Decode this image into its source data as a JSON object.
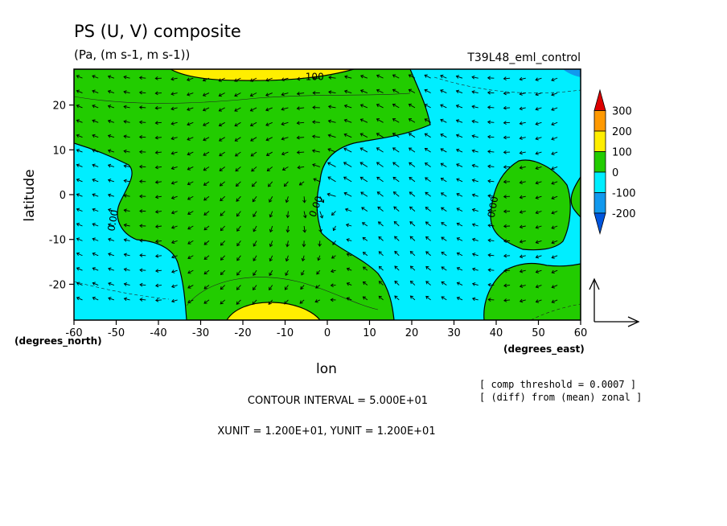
{
  "chart_data": {
    "type": "heatmap",
    "title": "PS (U, V) composite",
    "subtitle": "(Pa, (m s-1, m s-1))",
    "run_label": "T39L48_eml_control",
    "xlabel": "lon",
    "ylabel": "latitude",
    "x_unit_label": "(degrees_east)",
    "y_unit_label": "(degrees_north)",
    "xlim": [
      -60,
      60
    ],
    "ylim": [
      -28,
      28
    ],
    "x_ticks": [
      "-60",
      "-50",
      "-40",
      "-30",
      "-20",
      "-10",
      "0",
      "10",
      "20",
      "30",
      "40",
      "50",
      "60"
    ],
    "y_ticks": [
      "20",
      "10",
      "0",
      "-10",
      "-20"
    ],
    "x_tick_values": [
      -60,
      -50,
      -40,
      -30,
      -20,
      -10,
      0,
      10,
      20,
      30,
      40,
      50,
      60
    ],
    "y_tick_values": [
      20,
      10,
      0,
      -10,
      -20
    ],
    "contour_labels": [
      {
        "text": "100",
        "lon": -3,
        "lat": 26.5
      },
      {
        "text": "0.00",
        "lon": -50,
        "lat": -5
      },
      {
        "text": "0.00",
        "lon": -2,
        "lat": -2
      },
      {
        "text": "0.00",
        "lon": 40,
        "lat": -2
      }
    ],
    "colorbar": {
      "labels": [
        "300",
        "200",
        "100",
        "0",
        "-100",
        "-200"
      ],
      "colors": [
        "#dd0000",
        "#ff9900",
        "#ffee00",
        "#22cc00",
        "#00eeff",
        "#1199ee",
        "#0055dd"
      ]
    },
    "fill_colors": {
      "cyan": "#00eeff",
      "green": "#22cc00",
      "yellow": "#ffee00",
      "blue": "#1199ee"
    },
    "info": {
      "threshold": "[ comp threshold = 0.0007 ]",
      "diff": "[ (diff) from (mean) zonal ]",
      "contour_interval": "CONTOUR INTERVAL = 5.000E+01",
      "units": "XUNIT = 1.200E+01, YUNIT = 1.200E+01"
    }
  }
}
